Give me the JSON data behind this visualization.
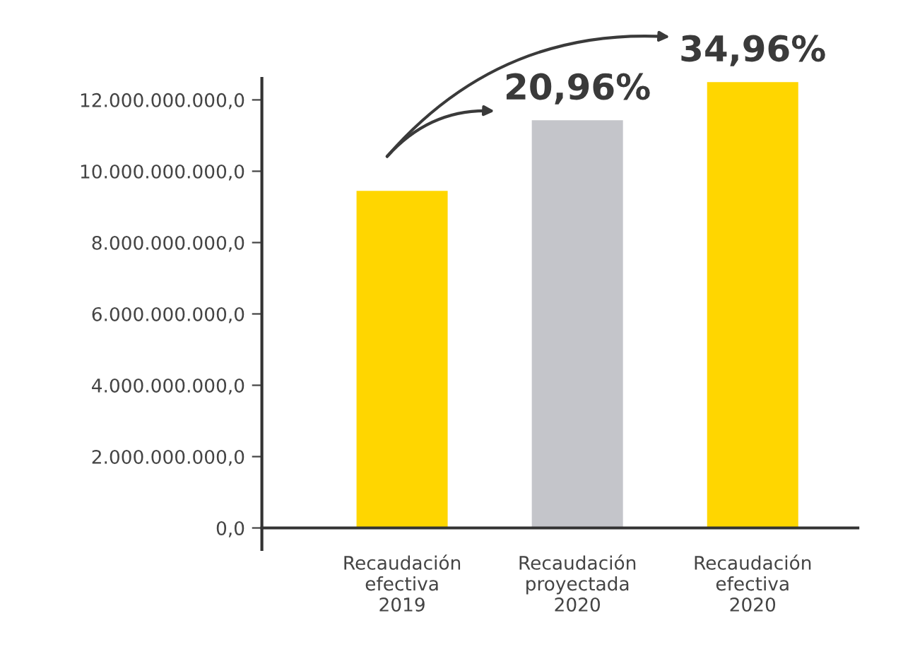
{
  "chart_data": {
    "type": "bar",
    "categories": [
      "Recaudación\nefectiva\n2019",
      "Recaudación\nproyectada\n2020",
      "Recaudación\nefectiva\n2020"
    ],
    "values": [
      9450000000,
      11430000000,
      12500000000
    ],
    "colors": [
      "#ffd600",
      "#c4c5ca",
      "#ffd600"
    ],
    "ylim": [
      -600000000,
      12600000000
    ],
    "yticks": [
      {
        "value": 0,
        "label": "0,0"
      },
      {
        "value": 2000000000,
        "label": "2.000.000.000,0"
      },
      {
        "value": 4000000000,
        "label": "4.000.000.000,0"
      },
      {
        "value": 6000000000,
        "label": "6.000.000.000,0"
      },
      {
        "value": 8000000000,
        "label": "8.000.000.000,0"
      },
      {
        "value": 10000000000,
        "label": "10.000.000.000,0"
      },
      {
        "value": 12000000000,
        "label": "12.000.000.000,0"
      }
    ],
    "annotations": [
      "20,96%",
      "34,96%"
    ],
    "grid": false,
    "legend": false
  }
}
